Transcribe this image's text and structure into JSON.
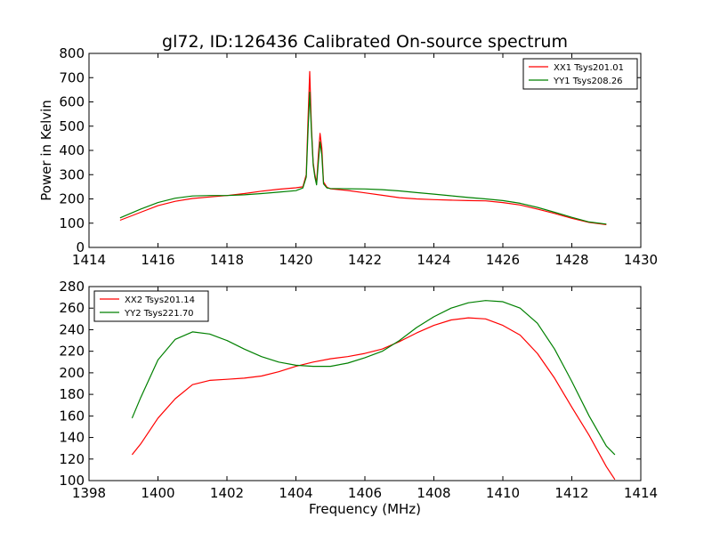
{
  "figure": {
    "title": "gl72, ID:126436 Calibrated On-source spectrum"
  },
  "chart_data": [
    {
      "type": "line",
      "title": "gl72, ID:126436 Calibrated On-source spectrum",
      "xlabel": "",
      "ylabel": "Power in Kelvin",
      "xlim": [
        1414,
        1430
      ],
      "ylim": [
        0,
        800
      ],
      "xticks": [
        1414,
        1416,
        1418,
        1420,
        1422,
        1424,
        1426,
        1428,
        1430
      ],
      "yticks": [
        0,
        100,
        200,
        300,
        400,
        500,
        600,
        700,
        800
      ],
      "legend_position": "top-right",
      "grid": false,
      "series": [
        {
          "name": "XX1 Tsys201.01",
          "color": "#ff0000",
          "x": [
            1414.9,
            1415.5,
            1416,
            1416.5,
            1417,
            1417.5,
            1418,
            1418.5,
            1419,
            1419.5,
            1420,
            1420.2,
            1420.3,
            1420.35,
            1420.4,
            1420.45,
            1420.5,
            1420.55,
            1420.6,
            1420.65,
            1420.7,
            1420.75,
            1420.8,
            1420.9,
            1421,
            1421.5,
            1422,
            1422.5,
            1423,
            1423.5,
            1424,
            1424.5,
            1425,
            1425.5,
            1426,
            1426.5,
            1427,
            1427.5,
            1428,
            1428.5,
            1429
          ],
          "y": [
            112,
            145,
            172,
            190,
            202,
            208,
            214,
            222,
            232,
            240,
            246,
            250,
            300,
            530,
            725,
            500,
            350,
            300,
            265,
            380,
            470,
            410,
            270,
            248,
            242,
            235,
            225,
            215,
            205,
            200,
            197,
            195,
            193,
            192,
            185,
            175,
            158,
            140,
            120,
            103,
            94
          ]
        },
        {
          "name": "YY1 Tsys208.26",
          "color": "#008000",
          "x": [
            1414.9,
            1415.5,
            1416,
            1416.5,
            1417,
            1417.5,
            1418,
            1418.5,
            1419,
            1419.5,
            1420,
            1420.2,
            1420.3,
            1420.35,
            1420.4,
            1420.45,
            1420.5,
            1420.55,
            1420.6,
            1420.65,
            1420.7,
            1420.75,
            1420.8,
            1420.9,
            1421,
            1421.5,
            1422,
            1422.5,
            1423,
            1423.5,
            1424,
            1424.5,
            1425,
            1425.5,
            1426,
            1426.5,
            1427,
            1427.5,
            1428,
            1428.5,
            1429
          ],
          "y": [
            122,
            158,
            185,
            203,
            212,
            214,
            214,
            217,
            222,
            228,
            234,
            245,
            290,
            480,
            640,
            480,
            340,
            290,
            258,
            350,
            435,
            380,
            262,
            245,
            243,
            242,
            241,
            238,
            233,
            226,
            220,
            213,
            206,
            200,
            193,
            182,
            165,
            145,
            124,
            105,
            96
          ]
        }
      ]
    },
    {
      "type": "line",
      "title": "",
      "xlabel": "Frequency (MHz)",
      "ylabel": "",
      "xlim": [
        1398,
        1414
      ],
      "ylim": [
        100,
        280
      ],
      "xticks": [
        1398,
        1400,
        1402,
        1404,
        1406,
        1408,
        1410,
        1412,
        1414
      ],
      "yticks": [
        100,
        120,
        140,
        160,
        180,
        200,
        220,
        240,
        260,
        280
      ],
      "legend_position": "top-left",
      "grid": false,
      "series": [
        {
          "name": "XX2 Tsys201.14",
          "color": "#ff0000",
          "x": [
            1399.25,
            1399.5,
            1400,
            1400.5,
            1401,
            1401.5,
            1402,
            1402.5,
            1403,
            1403.5,
            1404,
            1404.5,
            1405,
            1405.5,
            1406,
            1406.5,
            1407,
            1407.5,
            1408,
            1408.5,
            1409,
            1409.5,
            1410,
            1410.5,
            1411,
            1411.5,
            1412,
            1412.5,
            1413,
            1413.25
          ],
          "y": [
            124,
            134,
            158,
            176,
            189,
            193,
            194,
            195,
            197,
            201,
            206,
            210,
            213,
            215,
            218,
            222,
            229,
            237,
            244,
            249,
            251,
            250,
            244,
            235,
            218,
            195,
            168,
            142,
            113,
            101
          ]
        },
        {
          "name": "YY2 Tsys221.70",
          "color": "#008000",
          "x": [
            1399.25,
            1399.5,
            1400,
            1400.5,
            1401,
            1401.5,
            1402,
            1402.5,
            1403,
            1403.5,
            1404,
            1404.5,
            1405,
            1405.5,
            1406,
            1406.5,
            1407,
            1407.5,
            1408,
            1408.5,
            1409,
            1409.5,
            1410,
            1410.5,
            1411,
            1411.5,
            1412,
            1412.5,
            1413,
            1413.25
          ],
          "y": [
            158,
            177,
            212,
            231,
            238,
            236,
            230,
            222,
            215,
            210,
            207,
            206,
            206,
            209,
            214,
            220,
            230,
            242,
            252,
            260,
            265,
            267,
            266,
            260,
            246,
            222,
            192,
            160,
            132,
            124
          ]
        }
      ]
    }
  ]
}
